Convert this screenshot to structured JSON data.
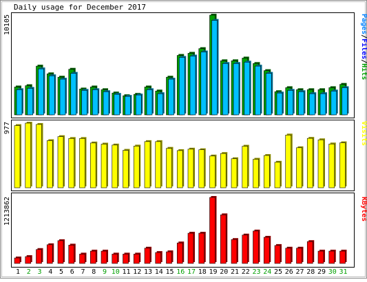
{
  "chart_data": [
    {
      "type": "bar",
      "title": "Daily usage for December 2017",
      "ylabel_max": "10105",
      "legend": [
        {
          "label": "Pages",
          "color": "#0080ff"
        },
        {
          "label": "Files",
          "color": "#0000ff"
        },
        {
          "label": "Hits",
          "color": "#00a000"
        }
      ],
      "categories": [
        "1",
        "2",
        "3",
        "4",
        "5",
        "6",
        "7",
        "8",
        "9",
        "10",
        "11",
        "12",
        "13",
        "14",
        "15",
        "16",
        "17",
        "18",
        "19",
        "20",
        "21",
        "22",
        "23",
        "24",
        "25",
        "26",
        "27",
        "28",
        "29",
        "30",
        "31"
      ],
      "weekend_days": [
        "2",
        "3",
        "9",
        "10",
        "16",
        "17",
        "23",
        "24",
        "30",
        "31"
      ],
      "ylim": [
        0,
        10105
      ],
      "series": [
        {
          "name": "Hits",
          "color": "#00a000",
          "values": [
            2826,
            2960,
            4940,
            4160,
            3820,
            4620,
            2619,
            2826,
            2553,
            2215,
            1941,
            2081,
            2826,
            2417,
            3820,
            6026,
            6240,
            6715,
            10105,
            5483,
            5483,
            5757,
            5206,
            4486,
            2351,
            2757,
            2553,
            2553,
            2553,
            2757,
            3089
          ]
        },
        {
          "name": "Files",
          "color": "#00c0ff",
          "values": [
            2553,
            2688,
            4660,
            3960,
            3620,
            4210,
            2485,
            2553,
            2351,
            2081,
            1874,
            2013,
            2553,
            2148,
            3620,
            5826,
            5960,
            6375,
            9575,
            5206,
            5206,
            5345,
            4940,
            4210,
            2215,
            2485,
            2351,
            2148,
            2148,
            2417,
            2757
          ]
        }
      ]
    },
    {
      "type": "bar",
      "ylabel_max": "977",
      "legend": [
        {
          "label": "Visits",
          "color": "#ffff00"
        }
      ],
      "categories": [
        "1",
        "2",
        "3",
        "4",
        "5",
        "6",
        "7",
        "8",
        "9",
        "10",
        "11",
        "12",
        "13",
        "14",
        "15",
        "16",
        "17",
        "18",
        "19",
        "20",
        "21",
        "22",
        "23",
        "24",
        "25",
        "26",
        "27",
        "28",
        "29",
        "30",
        "31"
      ],
      "ylim": [
        0,
        977
      ],
      "series": [
        {
          "name": "Visits",
          "color": "#ffff00",
          "values": [
            940,
            977,
            957,
            712,
            773,
            745,
            745,
            677,
            660,
            646,
            566,
            630,
            698,
            698,
            596,
            562,
            584,
            575,
            480,
            518,
            439,
            628,
            431,
            488,
            386,
            797,
            605,
            747,
            725,
            662,
            680
          ]
        }
      ]
    },
    {
      "type": "bar",
      "ylabel_max": "1213862",
      "legend": [
        {
          "label": "KBytes",
          "color": "#ff0000"
        }
      ],
      "categories": [
        "1",
        "2",
        "3",
        "4",
        "5",
        "6",
        "7",
        "8",
        "9",
        "10",
        "11",
        "12",
        "13",
        "14",
        "15",
        "16",
        "17",
        "18",
        "19",
        "20",
        "21",
        "22",
        "23",
        "24",
        "25",
        "26",
        "27",
        "28",
        "29",
        "30",
        "31"
      ],
      "ylim": [
        0,
        1213862
      ],
      "series": [
        {
          "name": "KBytes",
          "color": "#ff0000",
          "values": [
            101000,
            126000,
            256000,
            344000,
            419000,
            337000,
            172000,
            227000,
            227000,
            172000,
            172000,
            172000,
            281000,
            201000,
            214000,
            377000,
            556000,
            556000,
            1213862,
            894000,
            440000,
            522000,
            596000,
            481000,
            330000,
            281000,
            281000,
            402000,
            227000,
            227000,
            227000
          ]
        }
      ]
    }
  ]
}
